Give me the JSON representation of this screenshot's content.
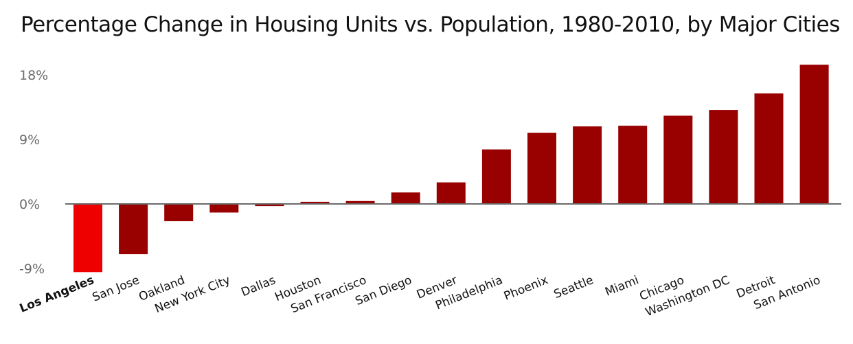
{
  "chart_data": {
    "type": "bar",
    "title": "Percentage Change in Housing Units vs. Population, 1980-2010, by Major Cities",
    "categories": [
      "Los Angeles",
      "San Jose",
      "Oakland",
      "New York City",
      "Dallas",
      "Houston",
      "San Francisco",
      "San Diego",
      "Denver",
      "Philadelphia",
      "Phoenix",
      "Seattle",
      "Miami",
      "Chicago",
      "Washington DC",
      "Detroit",
      "San Antonio"
    ],
    "values": [
      -9.5,
      -7.0,
      -2.4,
      -1.2,
      -0.3,
      0.3,
      0.4,
      1.6,
      3.0,
      7.6,
      9.9,
      10.8,
      10.9,
      12.3,
      13.1,
      15.4,
      19.4
    ],
    "highlight_category": "Los Angeles",
    "yticks": [
      -9,
      0,
      9,
      18
    ],
    "ytick_labels": [
      "-9%",
      "0%",
      "9%",
      "18%"
    ],
    "ylim": [
      -10,
      20
    ],
    "xlabel": "",
    "ylabel": "",
    "grid": false,
    "colors": {
      "bar": "#990000",
      "highlight": "#ee0000",
      "axis": "#6b6b6b"
    }
  }
}
